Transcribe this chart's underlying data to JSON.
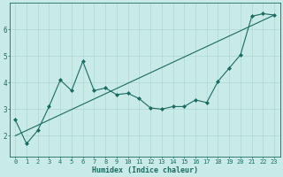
{
  "xlabel": "Humidex (Indice chaleur)",
  "background_color": "#c8ebe8",
  "grid_color": "#b0d8d4",
  "line_color": "#1a6b60",
  "xlim": [
    -0.5,
    23.5
  ],
  "ylim": [
    1.2,
    7.0
  ],
  "yticks": [
    2,
    3,
    4,
    5,
    6
  ],
  "xticks": [
    0,
    1,
    2,
    3,
    4,
    5,
    6,
    7,
    8,
    9,
    10,
    11,
    12,
    13,
    14,
    15,
    16,
    17,
    18,
    19,
    20,
    21,
    22,
    23
  ],
  "series1_x": [
    0,
    1,
    2,
    3,
    4,
    5,
    6,
    7,
    8,
    9,
    10,
    11,
    12,
    13,
    14,
    15,
    16,
    17,
    18,
    19,
    20,
    21,
    22,
    23
  ],
  "series1_y": [
    2.6,
    1.7,
    2.2,
    3.1,
    4.1,
    3.7,
    4.8,
    3.7,
    3.8,
    3.55,
    3.6,
    3.4,
    3.05,
    3.0,
    3.1,
    3.1,
    3.35,
    3.25,
    4.05,
    4.55,
    5.05,
    6.5,
    6.6,
    6.55
  ],
  "series2_x": [
    0,
    23
  ],
  "series2_y": [
    2.0,
    6.55
  ],
  "marker": "D",
  "markersize": 2.0,
  "linewidth": 0.8,
  "tick_fontsize": 5.0,
  "label_fontsize": 6.0
}
